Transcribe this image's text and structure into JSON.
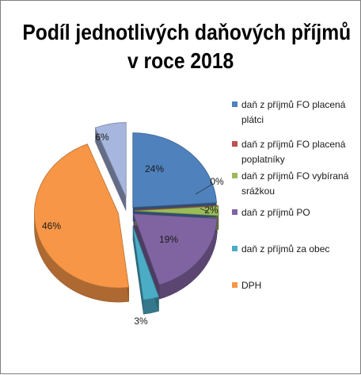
{
  "chart_data": {
    "type": "pie",
    "title": [
      "Podíl jednotlivých daňových příjmů",
      "v roce 2018"
    ],
    "three_d": true,
    "exploded": true,
    "legend_position": "right",
    "slices": [
      {
        "name": "daň z příjmů FO placená plátci",
        "name_lines": [
          "daň z příjmů FO placená",
          "plátci"
        ],
        "value": 24,
        "label": "24%",
        "color": "#4f81bd"
      },
      {
        "name": "daň z příjmů FO placená poplatníky",
        "name_lines": [
          "daň z příjmů FO placená",
          "poplatníky"
        ],
        "value": 0,
        "label": "0%",
        "color": "#c0504d"
      },
      {
        "name": "daň z příjmů FO vybíraná srážkou",
        "name_lines": [
          "daň z příjmů FO vybíraná",
          "srážkou"
        ],
        "value": 2,
        "label": "2%",
        "color": "#9bbb59"
      },
      {
        "name": "daň z příjmů PO",
        "name_lines": [
          "daň z příjmů PO"
        ],
        "value": 19,
        "label": "19%",
        "color": "#8064a2"
      },
      {
        "name": "daň z příjmů za obec",
        "name_lines": [
          "daň z příjmů za obec"
        ],
        "value": 3,
        "label": "3%",
        "color": "#4bacc6"
      },
      {
        "name": "DPH",
        "name_lines": [
          "DPH"
        ],
        "value": 46,
        "label": "46%",
        "color": "#f79646"
      },
      {
        "name": "",
        "name_lines": [],
        "value": 6,
        "label": "6%",
        "color": "#a6b6de"
      }
    ]
  }
}
